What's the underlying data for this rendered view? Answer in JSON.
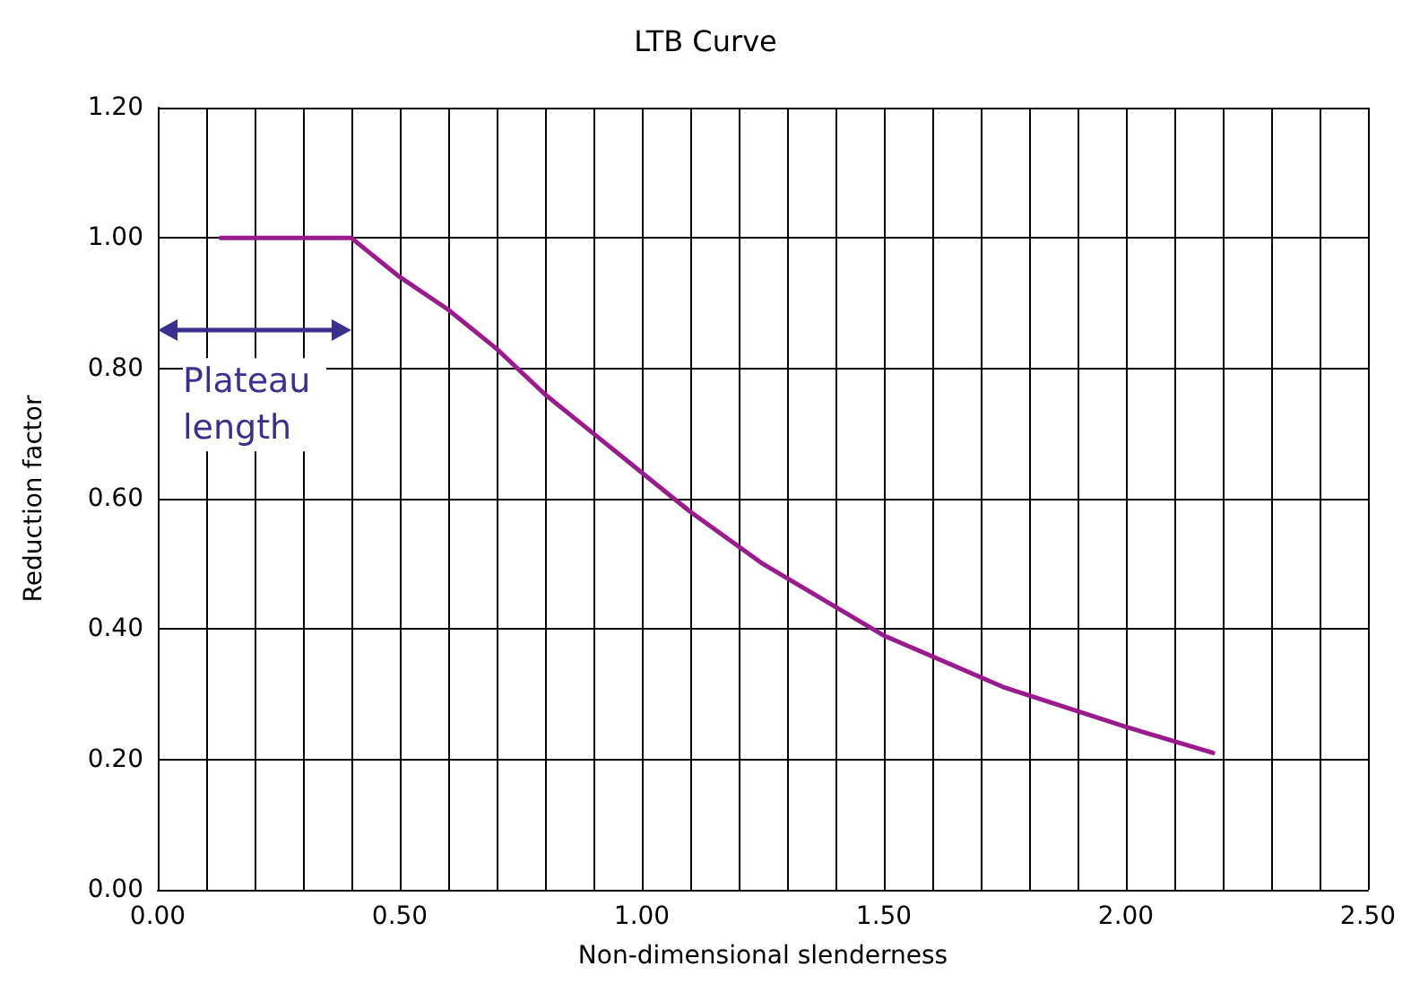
{
  "chart_data": {
    "type": "line",
    "title": "LTB Curve",
    "xlabel": "Non-dimensional slenderness",
    "ylabel": "Reduction factor",
    "x": [
      0.13,
      0.4,
      0.5,
      0.6,
      0.7,
      0.8,
      0.9,
      1.0,
      1.1,
      1.25,
      1.5,
      1.75,
      2.0,
      2.18
    ],
    "series": [
      {
        "color": "#9b1b8e",
        "values": [
          1,
          1,
          0.94,
          0.89,
          0.83,
          0.76,
          0.7,
          0.64,
          0.58,
          0.5,
          0.39,
          0.31,
          0.25,
          0.21
        ]
      }
    ],
    "xlim": [
      0,
      2.5
    ],
    "xticks": [
      {
        "value": 0,
        "label": "0.00"
      },
      {
        "value": 0.1,
        "label": null
      },
      {
        "value": 0.2,
        "label": null
      },
      {
        "value": 0.3,
        "label": null
      },
      {
        "value": 0.4,
        "label": null
      },
      {
        "value": 0.5,
        "label": "0.50"
      },
      {
        "value": 0.6,
        "label": null
      },
      {
        "value": 0.7,
        "label": null
      },
      {
        "value": 0.8,
        "label": null
      },
      {
        "value": 0.9,
        "label": null
      },
      {
        "value": 1.0,
        "label": "1.00"
      },
      {
        "value": 1.1,
        "label": null
      },
      {
        "value": 1.2,
        "label": null
      },
      {
        "value": 1.3,
        "label": null
      },
      {
        "value": 1.4,
        "label": null
      },
      {
        "value": 1.5,
        "label": "1.50"
      },
      {
        "value": 1.6,
        "label": null
      },
      {
        "value": 1.7,
        "label": null
      },
      {
        "value": 1.8,
        "label": null
      },
      {
        "value": 1.9,
        "label": null
      },
      {
        "value": 2.0,
        "label": "2.00"
      },
      {
        "value": 2.1,
        "label": null
      },
      {
        "value": 2.2,
        "label": null
      },
      {
        "value": 2.3,
        "label": null
      },
      {
        "value": 2.4,
        "label": null
      },
      {
        "value": 2.5,
        "label": "2.50"
      }
    ],
    "ylim": [
      0,
      1.2
    ],
    "yticks": [
      {
        "value": 0,
        "label": "0.00"
      },
      {
        "value": 0.2,
        "label": "0.20"
      },
      {
        "value": 0.4,
        "label": "0.40"
      },
      {
        "value": 0.6,
        "label": "0.60"
      },
      {
        "value": 0.8,
        "label": "0.80"
      },
      {
        "value": 1.0,
        "label": "1.00"
      },
      {
        "value": 1.2,
        "label": "1.20"
      }
    ],
    "grid": true,
    "marker": "none",
    "line_style": "solid",
    "annotations": [
      "Plateau length"
    ]
  }
}
